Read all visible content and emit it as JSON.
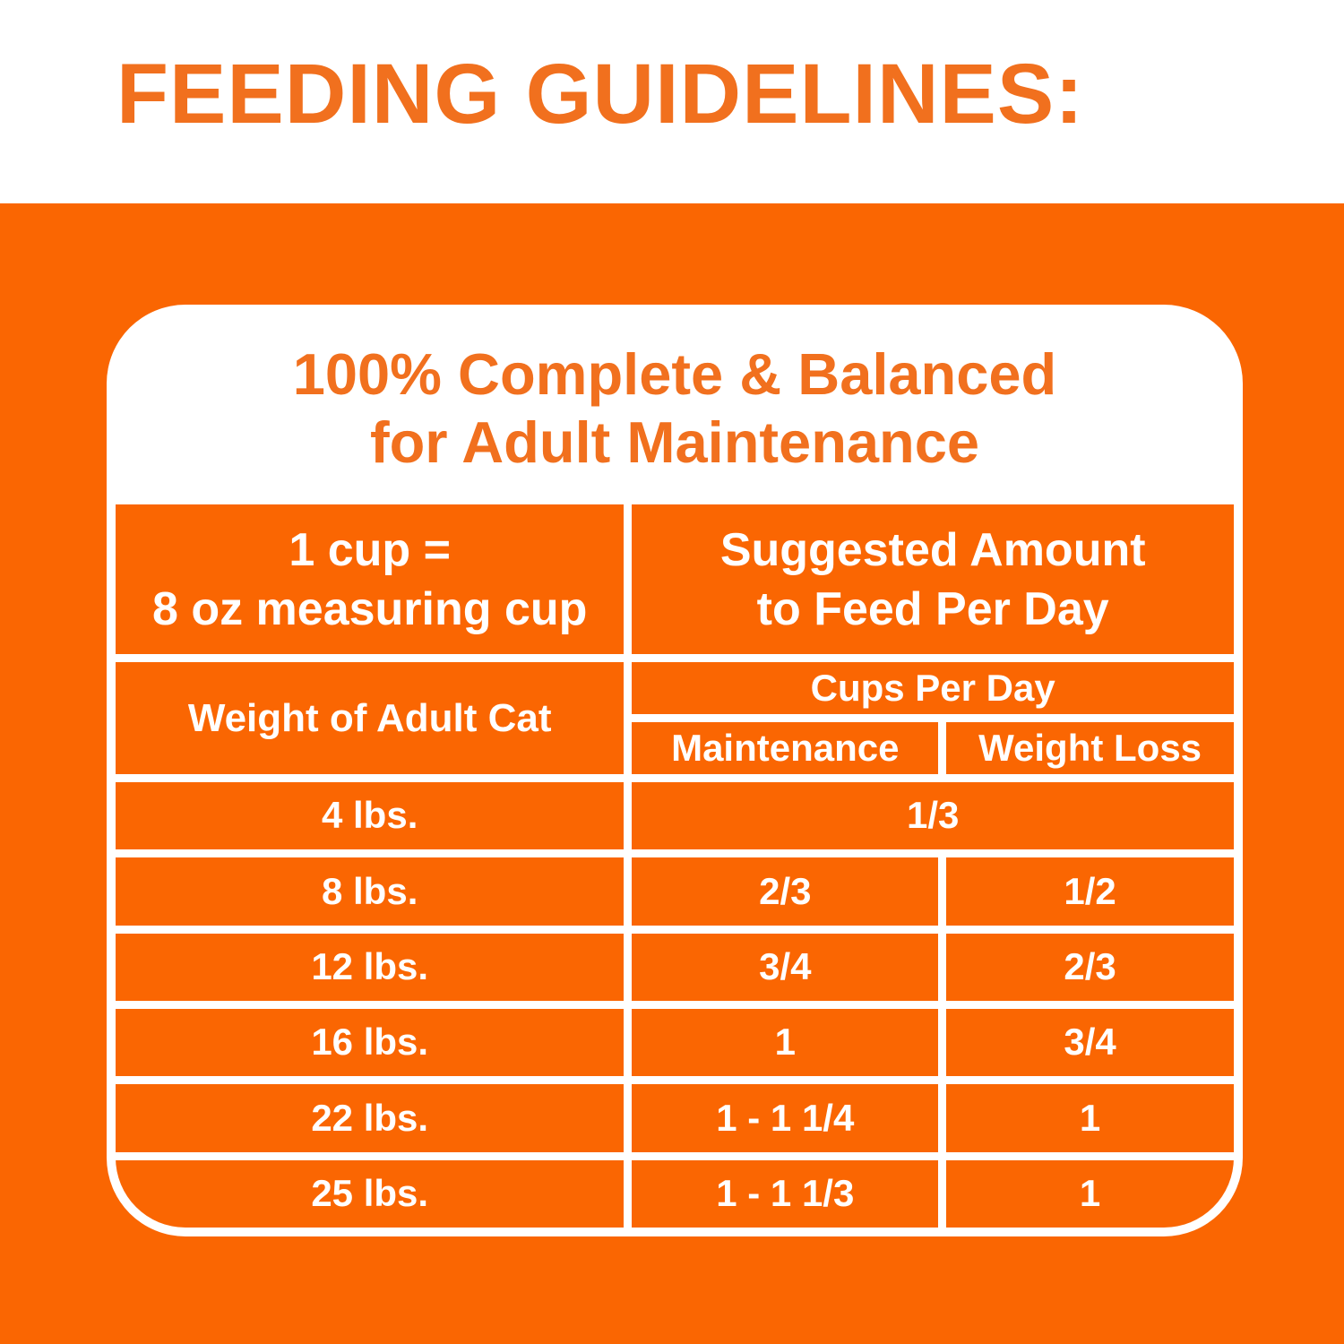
{
  "page": {
    "title": "FEEDING GUIDELINES:",
    "colors": {
      "background_orange": "#FA6602",
      "text_orange": "#F1701E",
      "card_white": "#FFFFFF",
      "table_text_white": "#FFFFFF"
    }
  },
  "card": {
    "heading_line1": "100% Complete & Balanced",
    "heading_line2": "for Adult Maintenance",
    "table": {
      "header_left_line1": "1 cup =",
      "header_left_line2": "8 oz measuring cup",
      "header_right_line1": "Suggested Amount",
      "header_right_line2": "to Feed Per Day",
      "weight_col_header": "Weight of Adult Cat",
      "cups_per_day_header": "Cups Per Day",
      "maintenance_header": "Maintenance",
      "weight_loss_header": "Weight Loss",
      "rows": [
        {
          "weight": "4 lbs.",
          "both": "1/3"
        },
        {
          "weight": "8 lbs.",
          "maintenance": "2/3",
          "weight_loss": "1/2"
        },
        {
          "weight": "12 lbs.",
          "maintenance": "3/4",
          "weight_loss": "2/3"
        },
        {
          "weight": "16 lbs.",
          "maintenance": "1",
          "weight_loss": "3/4"
        },
        {
          "weight": "22 lbs.",
          "maintenance": "1 - 1 1/4",
          "weight_loss": "1"
        },
        {
          "weight": "25 lbs.",
          "maintenance": "1 - 1 1/3",
          "weight_loss": "1"
        }
      ]
    }
  }
}
